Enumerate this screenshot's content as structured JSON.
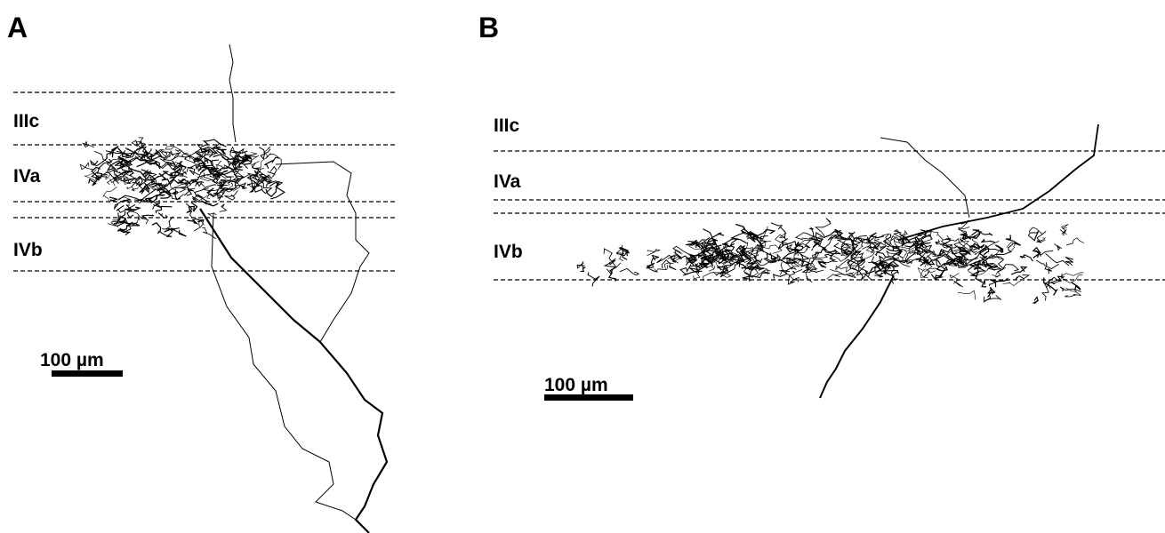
{
  "panels": [
    {
      "label": "A",
      "layers": [
        "IIIc",
        "IVa",
        "IVb"
      ],
      "scale_bar": "100 µm"
    },
    {
      "label": "B",
      "layers": [
        "IIIc",
        "IVa",
        "IVb"
      ],
      "scale_bar": "100 µm"
    }
  ]
}
